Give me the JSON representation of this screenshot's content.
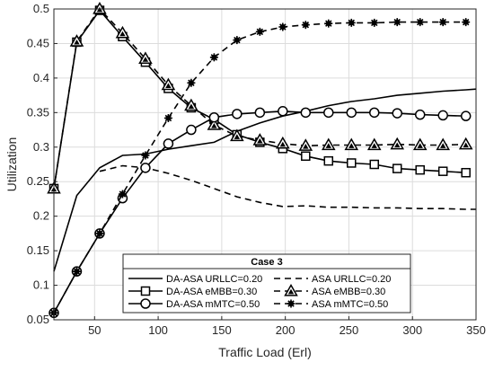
{
  "chart_data": {
    "type": "line",
    "title": "",
    "xlabel": "Traffic Load (Erl)",
    "ylabel": "Utilization",
    "xlim": [
      18,
      350
    ],
    "ylim": [
      0.05,
      0.5
    ],
    "grid": true,
    "xticks": [
      50,
      100,
      150,
      200,
      250,
      300,
      350
    ],
    "yticks": [
      0.05,
      0.1,
      0.15,
      0.2,
      0.25,
      0.3,
      0.35,
      0.4,
      0.45,
      0.5
    ],
    "legend": {
      "title": "Case 3",
      "placement": "bottom-center",
      "columns": 2
    },
    "series": [
      {
        "name": "DA-ASA URLLC=0.20",
        "line": "solid",
        "marker": "none",
        "x": [
          18,
          36,
          54,
          72,
          90,
          108,
          126,
          144,
          162,
          180,
          198,
          216,
          234,
          252,
          270,
          288,
          306,
          324,
          342,
          350
        ],
        "y": [
          0.12,
          0.23,
          0.27,
          0.288,
          0.29,
          0.297,
          0.302,
          0.307,
          0.323,
          0.335,
          0.345,
          0.352,
          0.36,
          0.366,
          0.37,
          0.375,
          0.378,
          0.381,
          0.383,
          0.384
        ]
      },
      {
        "name": "ASA URLLC=0.20",
        "line": "dashed",
        "marker": "none",
        "x": [
          54,
          72,
          90,
          108,
          126,
          144,
          162,
          180,
          198,
          216,
          234,
          252,
          270,
          288,
          306,
          324,
          342,
          350
        ],
        "y": [
          0.265,
          0.273,
          0.27,
          0.262,
          0.252,
          0.24,
          0.228,
          0.22,
          0.214,
          0.215,
          0.213,
          0.213,
          0.212,
          0.212,
          0.211,
          0.211,
          0.21,
          0.21
        ]
      },
      {
        "name": "DA-ASA eMBB=0.30",
        "line": "solid",
        "marker": "square",
        "x": [
          18,
          36,
          54,
          72,
          90,
          108,
          126,
          144,
          162,
          180,
          198,
          216,
          234,
          252,
          270,
          288,
          306,
          324,
          342
        ],
        "y": [
          0.24,
          0.452,
          0.498,
          0.46,
          0.423,
          0.385,
          0.357,
          0.34,
          0.318,
          0.307,
          0.298,
          0.287,
          0.28,
          0.277,
          0.275,
          0.269,
          0.267,
          0.265,
          0.263
        ]
      },
      {
        "name": "ASA eMBB=0.30",
        "line": "dashed",
        "marker": "triangle",
        "x": [
          18,
          36,
          54,
          72,
          90,
          108,
          126,
          144,
          162,
          180,
          198,
          216,
          234,
          252,
          270,
          288,
          306,
          324,
          342
        ],
        "y": [
          0.24,
          0.453,
          0.5,
          0.465,
          0.428,
          0.39,
          0.36,
          0.332,
          0.316,
          0.31,
          0.305,
          0.302,
          0.303,
          0.303,
          0.303,
          0.304,
          0.303,
          0.303,
          0.304
        ]
      },
      {
        "name": "DA-ASA mMTC=0.50",
        "line": "solid",
        "marker": "circle",
        "x": [
          18,
          36,
          54,
          72,
          90,
          108,
          126,
          144,
          162,
          180,
          198,
          216,
          234,
          252,
          270,
          288,
          306,
          324,
          342
        ],
        "y": [
          0.06,
          0.12,
          0.175,
          0.226,
          0.27,
          0.305,
          0.325,
          0.343,
          0.348,
          0.35,
          0.352,
          0.35,
          0.35,
          0.35,
          0.35,
          0.349,
          0.347,
          0.346,
          0.345
        ]
      },
      {
        "name": "ASA mMTC=0.50",
        "line": "dashed",
        "marker": "asterisk",
        "x": [
          18,
          36,
          54,
          72,
          90,
          108,
          126,
          144,
          162,
          180,
          198,
          216,
          234,
          252,
          270,
          288,
          306,
          324,
          342
        ],
        "y": [
          0.06,
          0.12,
          0.175,
          0.232,
          0.288,
          0.342,
          0.393,
          0.43,
          0.455,
          0.467,
          0.474,
          0.477,
          0.479,
          0.48,
          0.48,
          0.481,
          0.481,
          0.481,
          0.481
        ]
      }
    ]
  }
}
